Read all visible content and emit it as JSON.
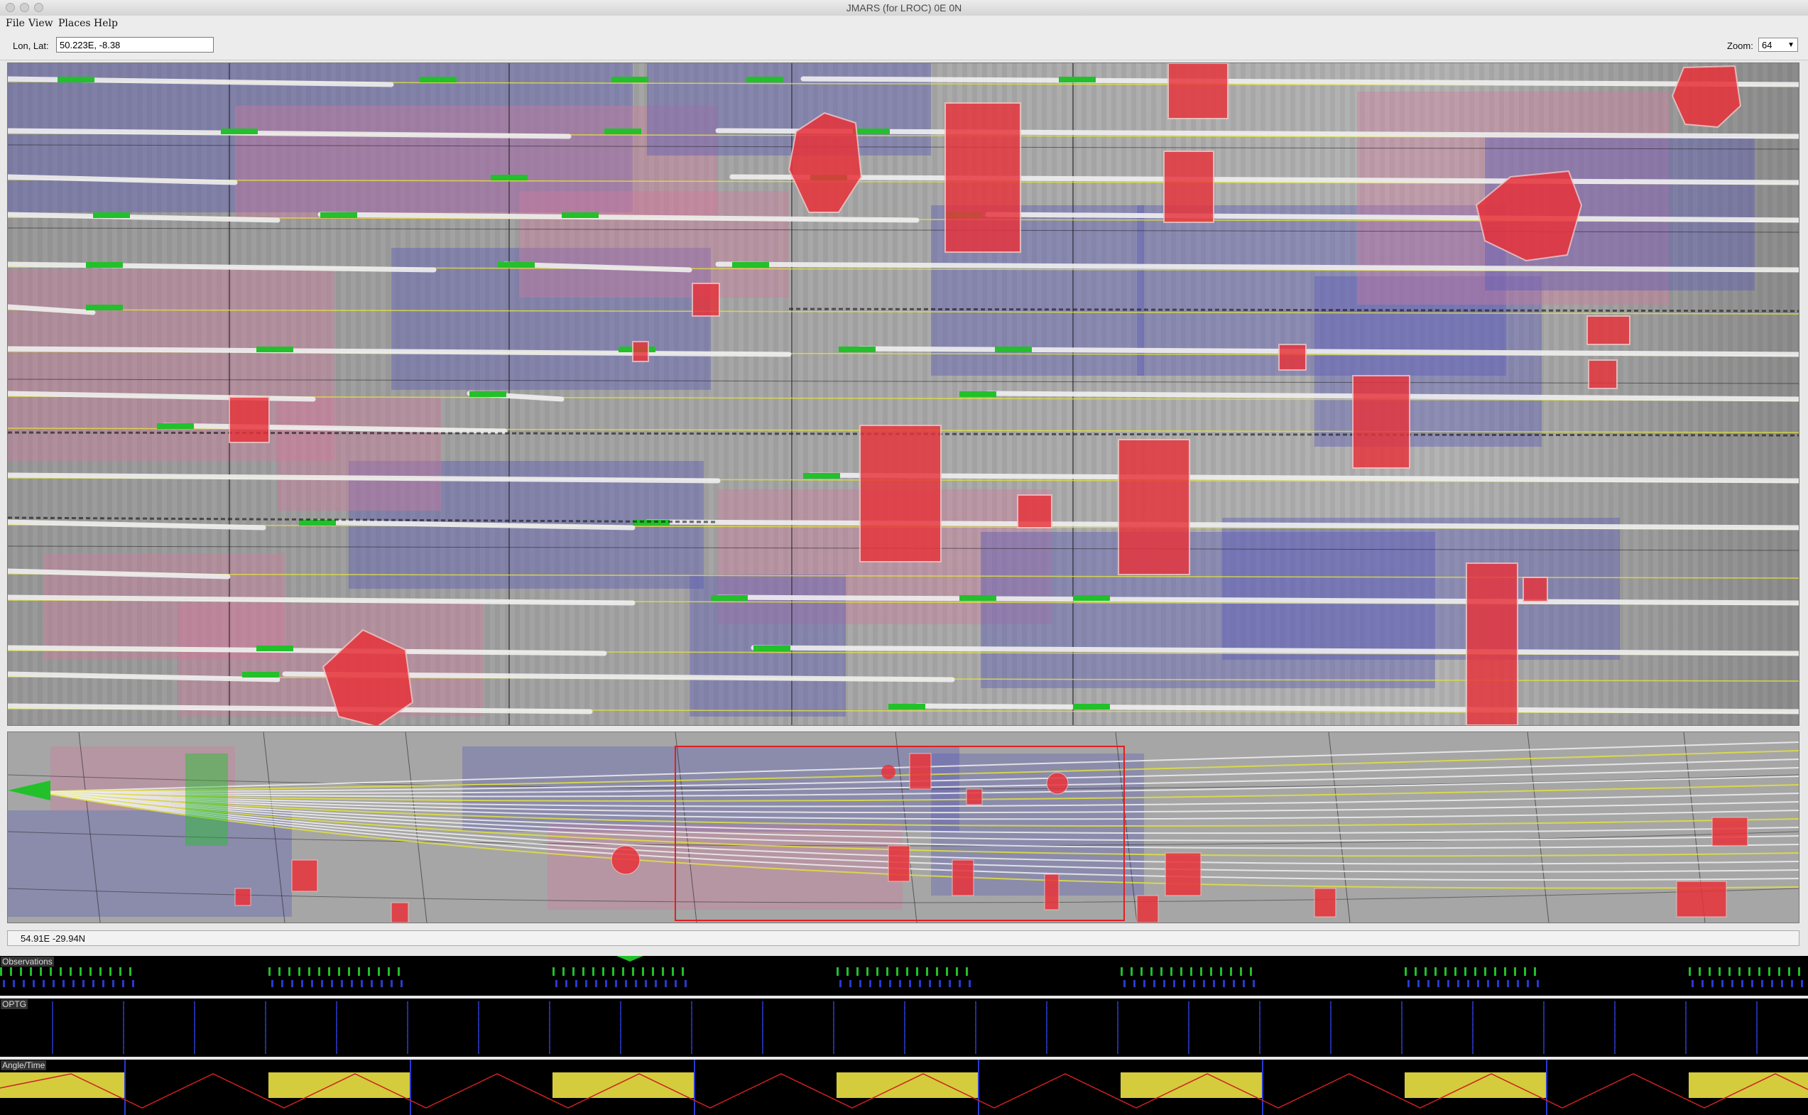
{
  "window": {
    "title": "JMARS (for LROC) 0E 0N"
  },
  "menu": {
    "items": [
      "File",
      "View",
      "Places",
      "Help"
    ]
  },
  "toolbar": {
    "lonlat_label": "Lon, Lat:",
    "lonlat_value": "50.223E, -8.38",
    "zoom_label": "Zoom:",
    "zoom_value": "64"
  },
  "status": {
    "coords": "54.91E  -29.94N"
  },
  "timelines": {
    "observations": {
      "title": "Observations"
    },
    "optg": {
      "title": "OPTG"
    },
    "angle_time": {
      "title": "Angle/Time"
    }
  },
  "colors": {
    "footprint_red": "#e8323a",
    "footprint_blue": "#5a5ab8",
    "footprint_pink": "#d2789c",
    "track_green": "#22c02a",
    "orbit_white": "#f0f0f0",
    "orbit_yellow": "#e0e040",
    "timeline_yellow": "#d4cc3c",
    "timeline_red": "#cc2020",
    "timeline_blue": "#2a3acc"
  },
  "icons": {
    "window_controls": [
      "close-light",
      "minimize-light",
      "zoom-light"
    ],
    "dropdown": "chevron-down-icon"
  }
}
